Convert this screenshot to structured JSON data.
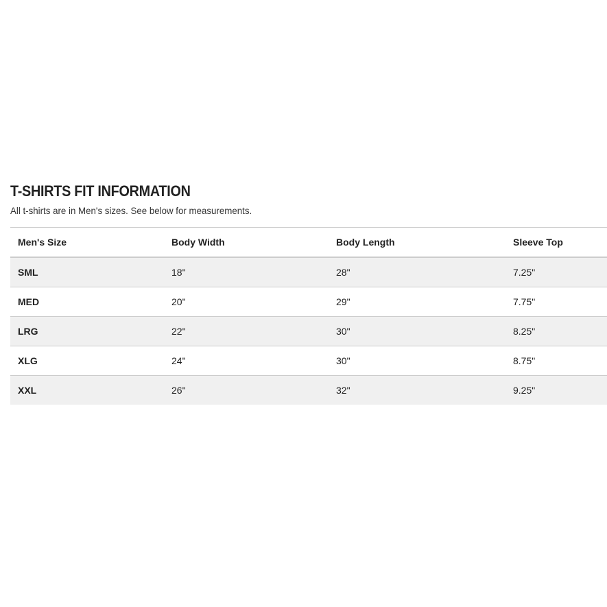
{
  "title": "T-SHIRTS FIT INFORMATION",
  "subtitle": "All t-shirts are in Men's sizes. See below for measurements.",
  "table": {
    "headers": [
      "Men's Size",
      "Body Width",
      "Body Length",
      "Sleeve Top"
    ],
    "rows": [
      [
        "SML",
        "18\"",
        "28\"",
        "7.25\""
      ],
      [
        "MED",
        "20\"",
        "29\"",
        "7.75\""
      ],
      [
        "LRG",
        "22\"",
        "30\"",
        "8.25\""
      ],
      [
        "XLG",
        "24\"",
        "30\"",
        "8.75\""
      ],
      [
        "XXL",
        "26\"",
        "32\"",
        "9.25\""
      ]
    ]
  }
}
